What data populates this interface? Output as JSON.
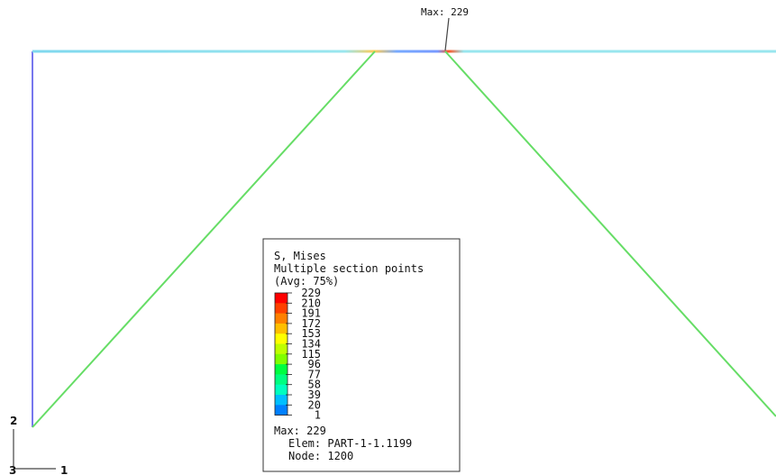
{
  "max_marker": {
    "label": "Max: 229"
  },
  "legend": {
    "title_line1": "S, Mises",
    "title_line2": "Multiple section points",
    "title_line3": "(Avg: 75%)",
    "scale": [
      {
        "value": "229",
        "color": "#ff0000"
      },
      {
        "value": "210",
        "color": "#ff4000"
      },
      {
        "value": "191",
        "color": "#ff8000"
      },
      {
        "value": "172",
        "color": "#ffbf00"
      },
      {
        "value": "153",
        "color": "#ffff00"
      },
      {
        "value": "134",
        "color": "#bfff00"
      },
      {
        "value": "115",
        "color": "#80ff00"
      },
      {
        "value": "96",
        "color": "#00ff40"
      },
      {
        "value": "77",
        "color": "#00ff80"
      },
      {
        "value": "58",
        "color": "#00ffbf"
      },
      {
        "value": "39",
        "color": "#00bfff"
      },
      {
        "value": "20",
        "color": "#0080ff"
      },
      {
        "value": "1",
        "color": "#0000ff"
      }
    ],
    "max_line": "Max: 229",
    "elem_line": "Elem: PART-1-1.1199",
    "node_line": "Node: 1200"
  },
  "triad": {
    "axis_y": "2",
    "axis_z": "3",
    "axis_x": "1"
  },
  "colors": {
    "diagonal_members": "#66dd66",
    "left_column": "#7777ee",
    "top_beam": "#88e0ee",
    "max_point": "#ff3300"
  }
}
